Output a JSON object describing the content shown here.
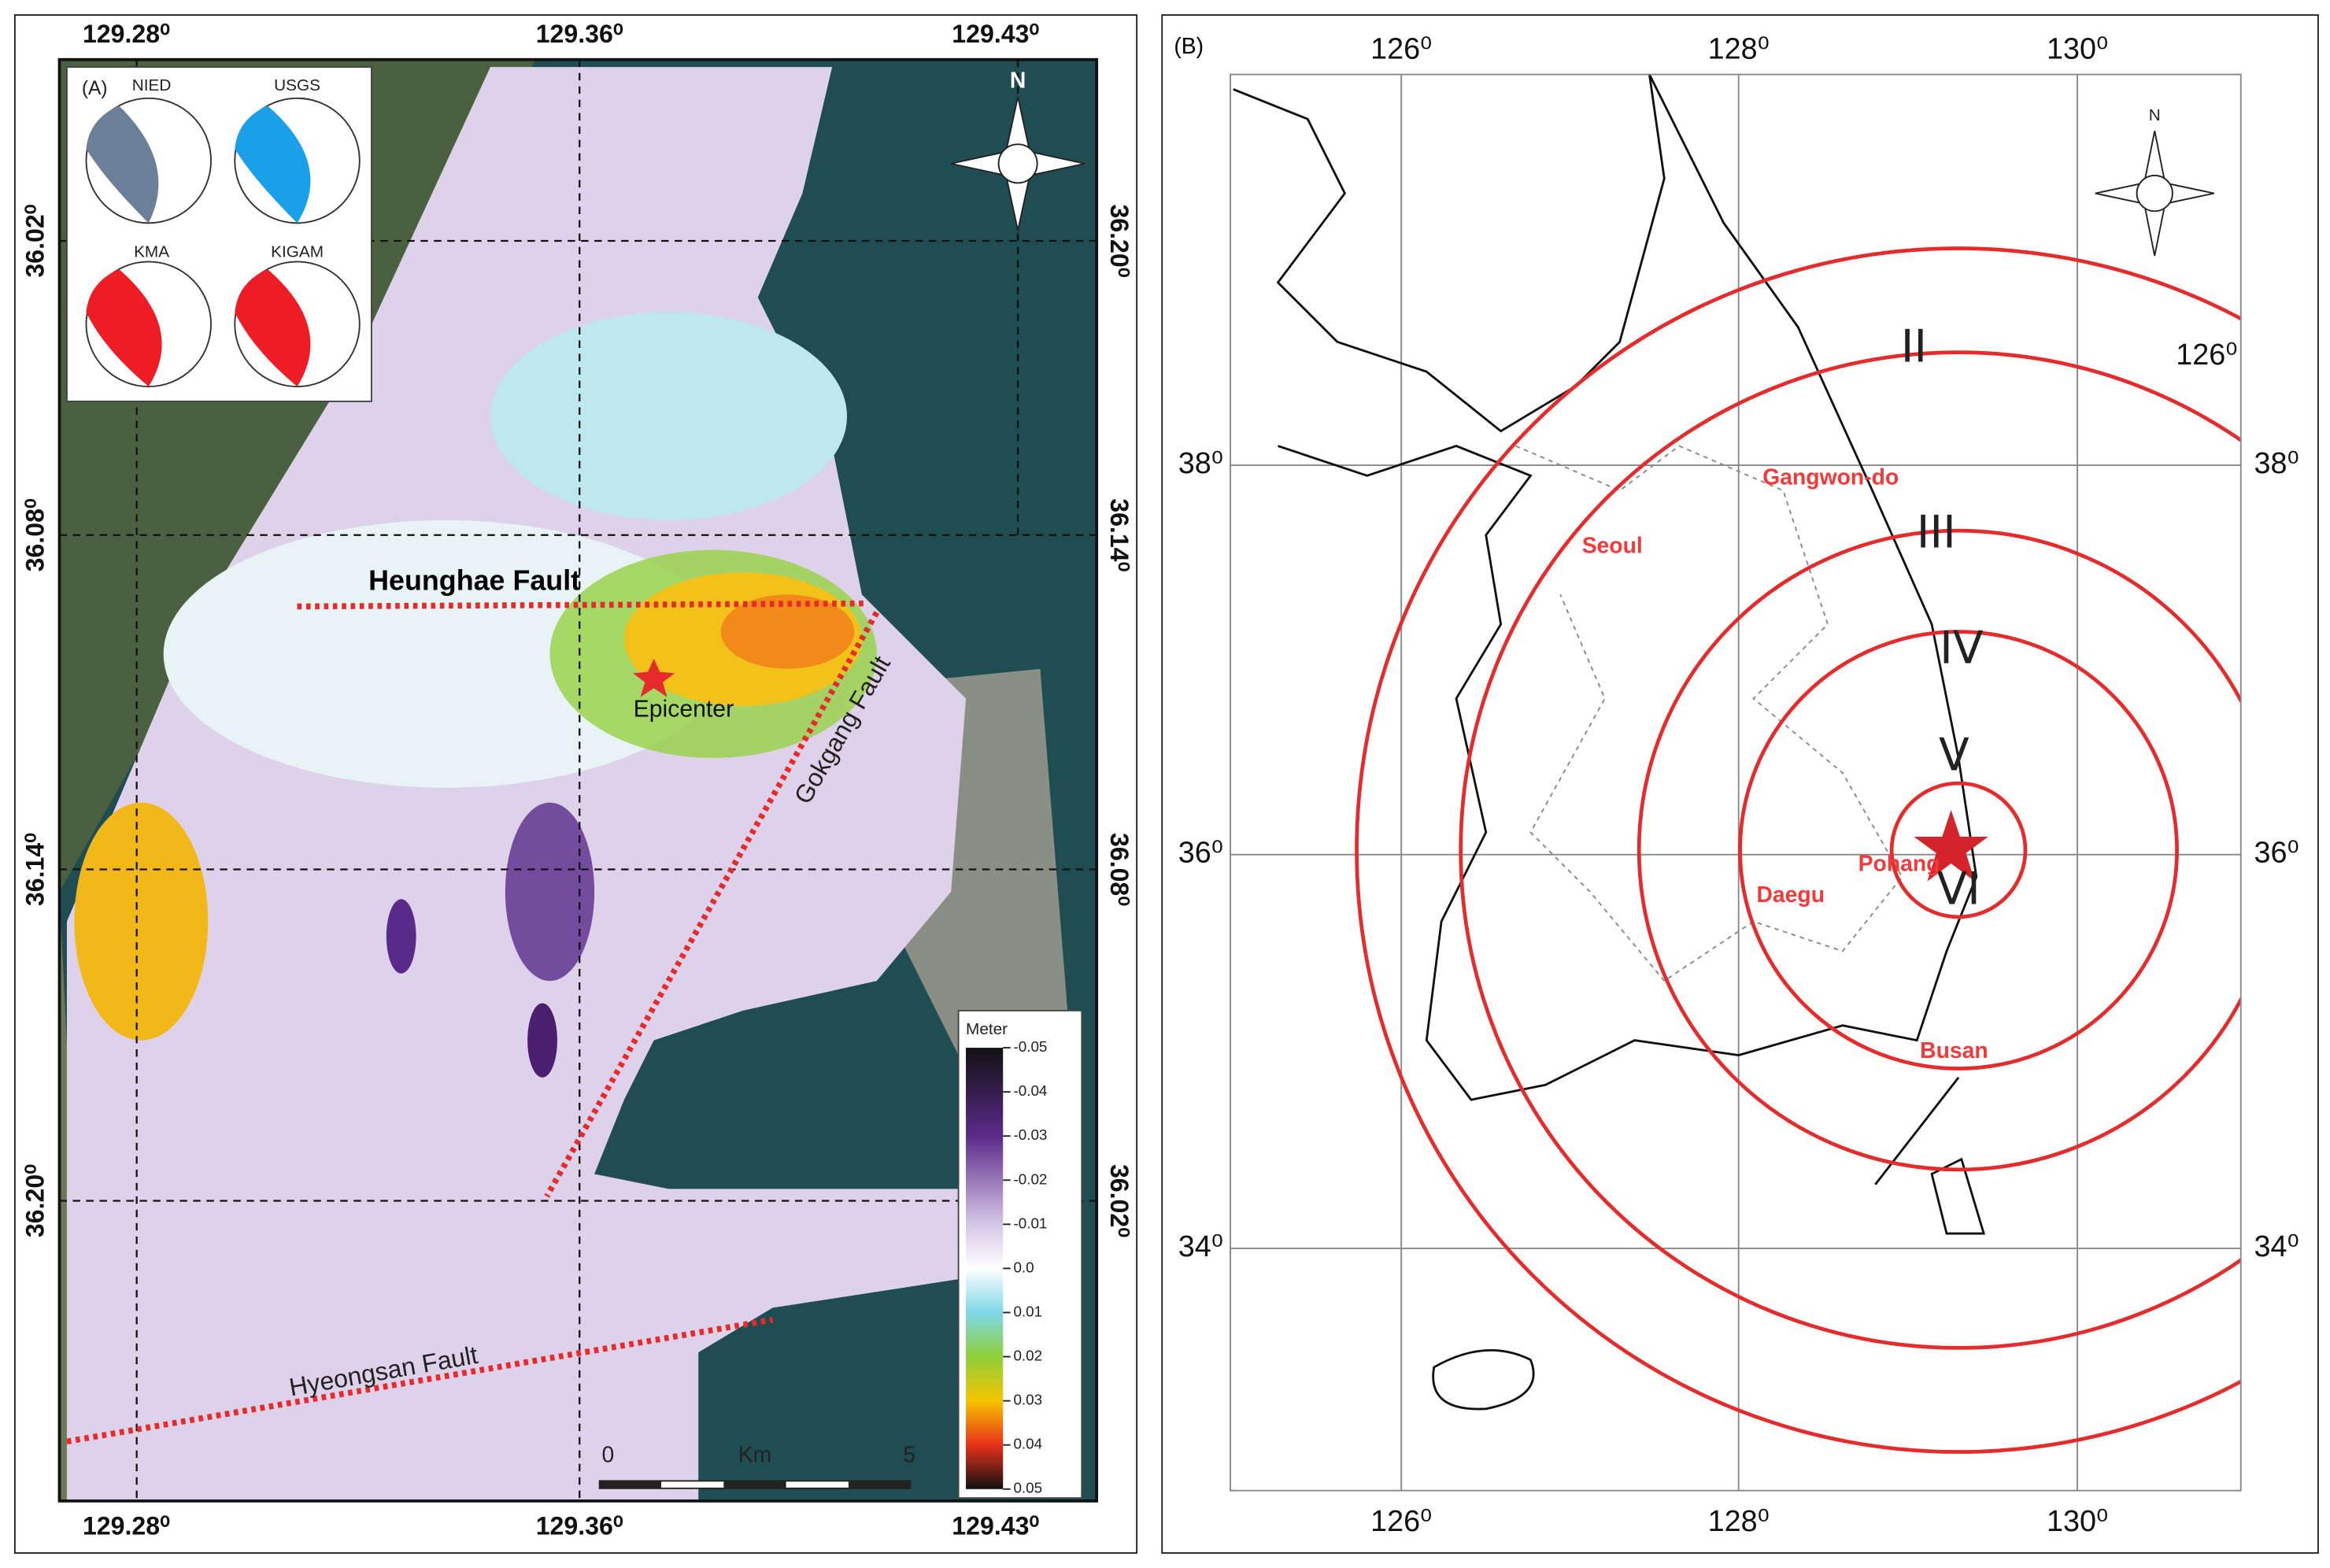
{
  "panel_a": {
    "label": "(A)",
    "top_labels": [
      "129.28⁰",
      "129.36⁰",
      "129.43⁰"
    ],
    "bottom_labels": [
      "129.28⁰",
      "129.36⁰",
      "129.43⁰"
    ],
    "left_labels": [
      "36.02⁰",
      "36.08⁰",
      "36.14⁰",
      "36.20⁰"
    ],
    "right_labels": [
      "36.20⁰",
      "36.14⁰",
      "36.08⁰",
      "36.02⁰"
    ],
    "north": "N",
    "mechanisms": [
      "NIED",
      "USGS",
      "KMA",
      "KIGAM"
    ],
    "faults": [
      "Heunghae Fault",
      "Gokgang Fault",
      "Hyeongsan Fault"
    ],
    "epicenter": "Epicenter",
    "colorbar": {
      "title": "Meter",
      "ticks": [
        "-0.05",
        "-0.04",
        "-0.03",
        "-0.02",
        "-0.01",
        "0.0",
        "0.01",
        "0.02",
        "0.03",
        "0.04",
        "0.05"
      ]
    },
    "scalebar": {
      "start": "0",
      "unit": "Km",
      "end": "5"
    }
  },
  "panel_b": {
    "label": "(B)",
    "top_labels": [
      "126⁰",
      "128⁰",
      "130⁰"
    ],
    "bottom_labels": [
      "126⁰",
      "128⁰",
      "130⁰"
    ],
    "left_labels": [
      "38⁰",
      "36⁰",
      "34⁰"
    ],
    "right_labels": [
      "38⁰",
      "36⁰",
      "34⁰"
    ],
    "ring_label": "126⁰",
    "north": "N",
    "intensities": [
      "II",
      "III",
      "IV",
      "V",
      "VI"
    ],
    "cities": [
      "Seoul",
      "Gangwon-do",
      "Daegu",
      "Pohang",
      "Busan"
    ]
  }
}
